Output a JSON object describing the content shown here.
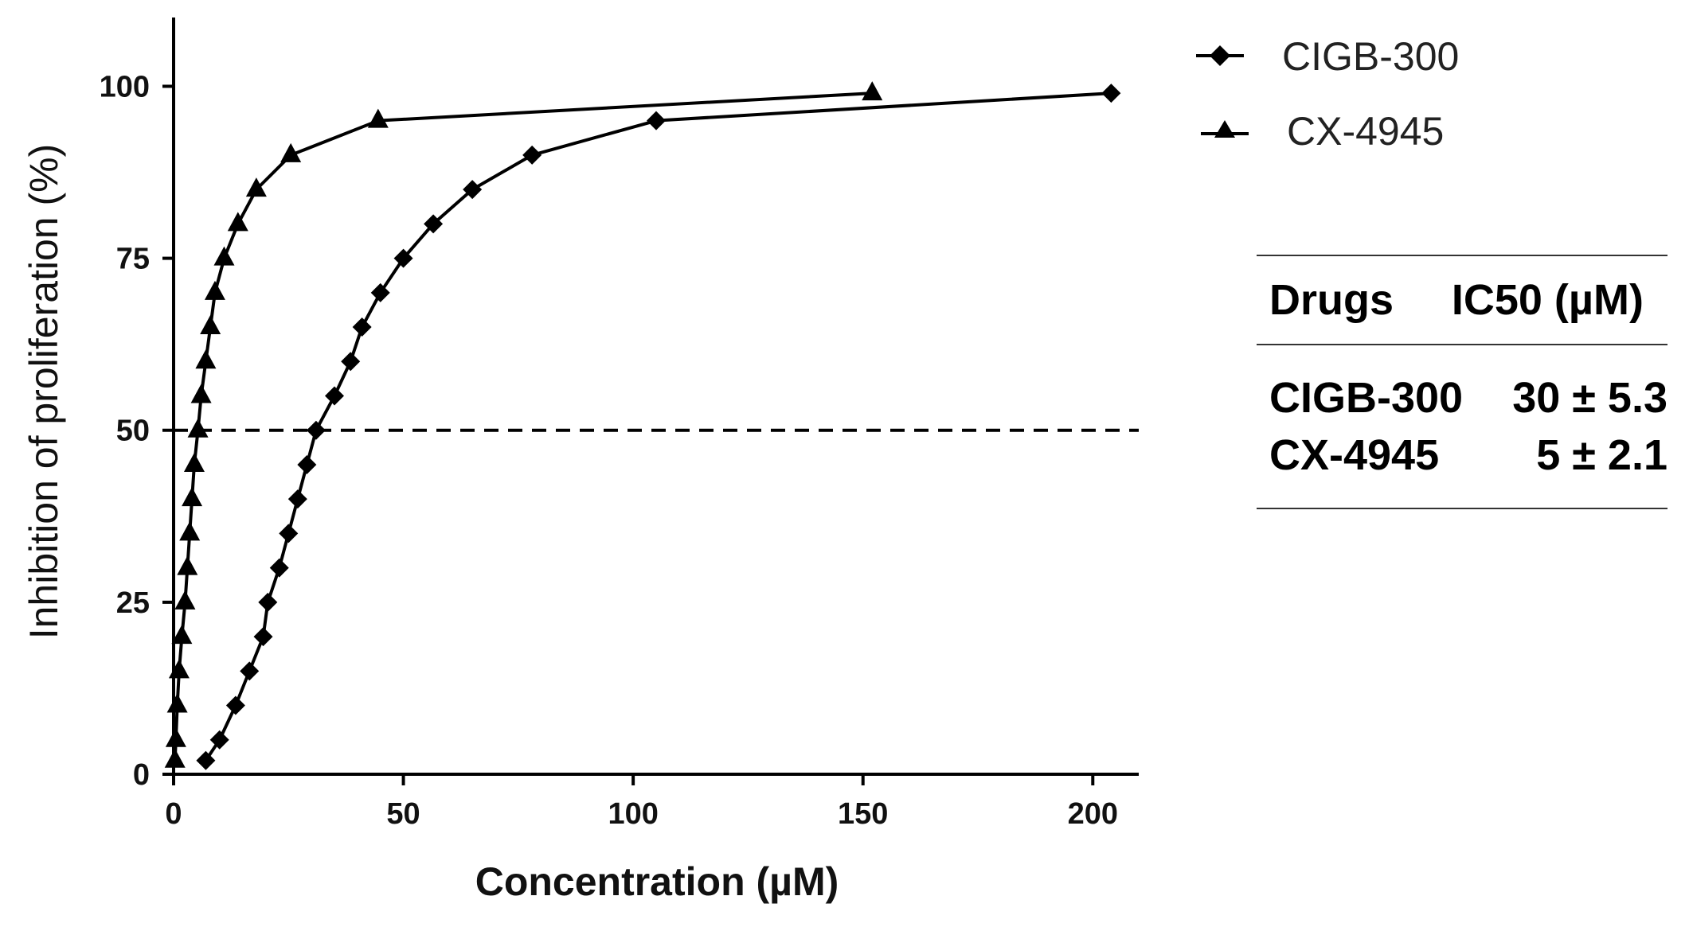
{
  "chart_data": {
    "type": "line",
    "xlabel": "Concentration (µM)",
    "ylabel": "Inhibition of proliferation  (%)",
    "xlim": [
      0,
      210
    ],
    "ylim": [
      0,
      110
    ],
    "x_ticks": [
      "0",
      "50",
      "100",
      "150",
      "200"
    ],
    "y_ticks": [
      "0",
      "25",
      "50",
      "75",
      "100"
    ],
    "reference_line": {
      "y": 50,
      "style": "dashed"
    },
    "legend_position": "top-right",
    "series": [
      {
        "name": "CIGB-300",
        "marker": "diamond",
        "x": [
          7,
          10,
          13.5,
          16.5,
          19.5,
          20.5,
          23,
          25,
          27,
          29,
          31,
          35,
          38.5,
          41,
          45,
          50,
          56.5,
          65,
          78,
          105,
          204
        ],
        "y": [
          2,
          5,
          10,
          15,
          20,
          25,
          30,
          35,
          40,
          45,
          50,
          55,
          60,
          65,
          70,
          75,
          80,
          85,
          90,
          95,
          99
        ]
      },
      {
        "name": "CX-4945",
        "marker": "triangle",
        "x": [
          0.3,
          0.5,
          0.8,
          1.2,
          1.8,
          2.5,
          3,
          3.5,
          4,
          4.5,
          5.3,
          6,
          7,
          8,
          9,
          11,
          14,
          18,
          25.5,
          44.5,
          152
        ],
        "y": [
          2,
          5,
          10,
          15,
          20,
          25,
          30,
          35,
          40,
          45,
          50,
          55,
          60,
          65,
          70,
          75,
          80,
          85,
          90,
          95,
          99
        ]
      }
    ]
  },
  "legend": {
    "items": [
      {
        "label": "CIGB-300"
      },
      {
        "label": "CX-4945"
      }
    ]
  },
  "ic50_table": {
    "headers": [
      "Drugs",
      "IC50 (µM)"
    ],
    "rows": [
      {
        "drug": "CIGB-300",
        "value": "30 ± 5.3"
      },
      {
        "drug": "CX-4945",
        "value": "5 ± 2.1"
      }
    ]
  }
}
